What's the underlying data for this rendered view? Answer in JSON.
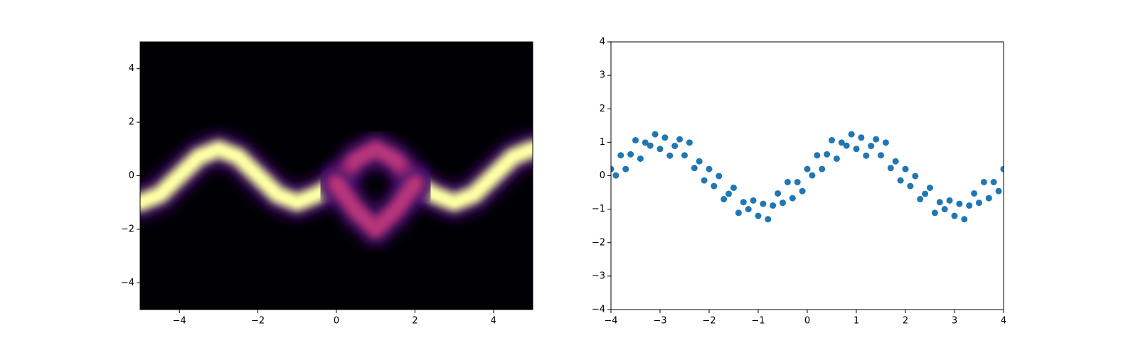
{
  "chart_data": [
    {
      "type": "density",
      "x": [
        -5,
        -4.5,
        -4,
        -3.5,
        -3,
        -2.5,
        -2,
        -1.5,
        -1,
        -0.5,
        0,
        0.5,
        1,
        1.5,
        2,
        2.5,
        3,
        3.5,
        4,
        4.5,
        5
      ],
      "series": [
        {
          "color": "#fcffa4",
          "values": [
            -1,
            -0.71,
            0,
            0.71,
            1,
            0.71,
            0,
            -0.71,
            -1,
            -0.71,
            -0.3,
            null,
            null,
            null,
            -0.3,
            -0.71,
            -1,
            -0.71,
            0,
            0.71,
            1
          ]
        },
        {
          "color": "#b5367a",
          "values": [
            null,
            null,
            null,
            null,
            null,
            null,
            null,
            null,
            null,
            null,
            -0.3,
            0.6,
            1,
            0.6,
            -0.3,
            null,
            null,
            null,
            null,
            null,
            null
          ]
        },
        {
          "color": "#b5367a",
          "values": [
            null,
            null,
            null,
            null,
            null,
            null,
            null,
            null,
            null,
            null,
            -0.3,
            -1.3,
            -2,
            -1.3,
            -0.3,
            null,
            null,
            null,
            null,
            null,
            null
          ]
        }
      ],
      "background": "#000004",
      "xlim": [
        -5,
        5
      ],
      "ylim": [
        -5,
        5
      ],
      "xticks": [
        {
          "value": -4,
          "label": "−4"
        },
        {
          "value": -2,
          "label": "−2"
        },
        0,
        2,
        4
      ],
      "yticks": [
        {
          "value": -4,
          "label": "−4"
        },
        {
          "value": -2,
          "label": "−2"
        },
        0,
        2,
        4
      ]
    },
    {
      "type": "scatter",
      "x": [
        -4,
        -3.9,
        -3.8,
        -3.7,
        -3.6,
        -3.5,
        -3.4,
        -3.3,
        -3.2,
        -3.1,
        -3,
        -2.9,
        -2.8,
        -2.7,
        -2.6,
        -2.5,
        -2.4,
        -2.3,
        -2.2,
        -2.1,
        -2,
        -1.9,
        -1.8,
        -1.7,
        -1.6,
        -1.5,
        -1.4,
        -1.3,
        -1.2,
        -1.1,
        -1,
        -0.9,
        -0.8,
        -0.7,
        -0.6,
        -0.5,
        -0.4,
        -0.3,
        -0.2,
        -0.1,
        0,
        0.1,
        0.2,
        0.3,
        0.4,
        0.5,
        0.6,
        0.7,
        0.8,
        0.9,
        1,
        1.1,
        1.2,
        1.3,
        1.4,
        1.5,
        1.6,
        1.7,
        1.8,
        1.9,
        2,
        2.1,
        2.2,
        2.3,
        2.4,
        2.5,
        2.6,
        2.7,
        2.8,
        2.9,
        3,
        3.1,
        3.2,
        3.3,
        3.4,
        3.5,
        3.6,
        3.7,
        3.8,
        3.9,
        4
      ],
      "y": [
        0.2,
        0.01,
        0.61,
        0.2,
        0.64,
        1.06,
        0.51,
        0.99,
        0.9,
        1.24,
        0.8,
        1.14,
        0.6,
        0.89,
        1.09,
        0.61,
        0.99,
        0.23,
        0.43,
        -0.14,
        0.2,
        -0.31,
        -0.01,
        -0.7,
        -0.54,
        -0.36,
        -1.11,
        -0.79,
        -1,
        -0.74,
        -1.2,
        -0.84,
        -1.3,
        -0.89,
        -0.53,
        -0.81,
        -0.19,
        -0.67,
        -0.19,
        -0.46,
        0.2,
        0.01,
        0.61,
        0.2,
        0.64,
        1.06,
        0.51,
        0.99,
        0.9,
        1.24,
        0.8,
        1.14,
        0.6,
        0.89,
        1.09,
        0.61,
        0.99,
        0.23,
        0.43,
        -0.14,
        0.2,
        -0.31,
        -0.01,
        -0.7,
        -0.54,
        -0.36,
        -1.11,
        -0.79,
        -1,
        -0.74,
        -1.2,
        -0.84,
        -1.3,
        -0.89,
        -0.53,
        -0.81,
        -0.19,
        -0.67,
        -0.19,
        -0.46,
        0.2
      ],
      "color": "#1f77b4",
      "xlim": [
        -4,
        4
      ],
      "ylim": [
        -4,
        4
      ],
      "xticks": [
        {
          "value": -4,
          "label": "−4"
        },
        {
          "value": -3,
          "label": "−3"
        },
        {
          "value": -2,
          "label": "−2"
        },
        {
          "value": -1,
          "label": "−1"
        },
        0,
        1,
        2,
        3,
        4
      ],
      "yticks": [
        {
          "value": -4,
          "label": "−4"
        },
        {
          "value": -3,
          "label": "−3"
        },
        {
          "value": -2,
          "label": "−2"
        },
        {
          "value": -1,
          "label": "−1"
        },
        0,
        1,
        2,
        3,
        4
      ]
    }
  ]
}
